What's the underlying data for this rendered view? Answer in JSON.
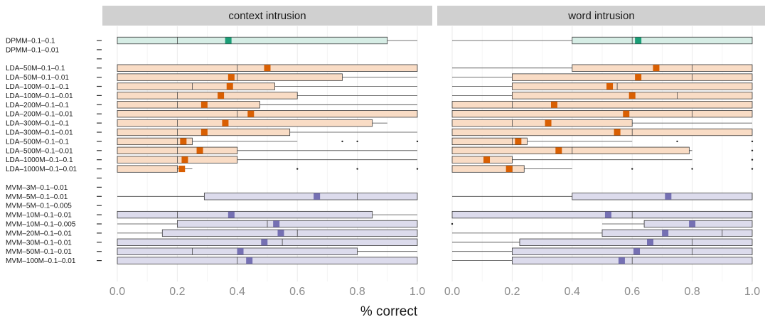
{
  "chart_data": {
    "type": "boxplot",
    "xlabel": "% correct",
    "xlim": [
      0,
      1
    ],
    "xticks": [
      "0.0",
      "0.2",
      "0.4",
      "0.6",
      "0.8",
      "1.0"
    ],
    "panels": [
      "context intrusion",
      "word intrusion"
    ],
    "group_colors": {
      "DPMM": {
        "fill": "#d6ede5",
        "stroke": "#3a3a3a",
        "mean": "#1b9e77"
      },
      "LDA": {
        "fill": "#f9dcc5",
        "stroke": "#3a3a3a",
        "mean": "#d95f02"
      },
      "MVM": {
        "fill": "#dcdbec",
        "stroke": "#3a3a3a",
        "mean": "#7570b3"
      }
    },
    "rows": [
      {
        "label": "DPMM–0.1–0.1",
        "group": "DPMM",
        "context": {
          "lw": 0,
          "q1": 0,
          "med": 0.2,
          "q3": 0.9,
          "uw": 1.0,
          "mean": 0.37,
          "outliers": []
        },
        "word": {
          "lw": 0,
          "q1": 0.4,
          "med": 0.6,
          "q3": 1.0,
          "uw": 1.0,
          "mean": 0.62,
          "outliers": []
        }
      },
      {
        "label": "DPMM–0.1–0.01",
        "group": "DPMM",
        "context": null,
        "word": null
      },
      {
        "label": "",
        "group": "blank",
        "context": null,
        "word": null
      },
      {
        "label": "LDA–50M–0.1–0.1",
        "group": "LDA",
        "context": {
          "lw": 0,
          "q1": 0,
          "med": 0.4,
          "q3": 1.0,
          "uw": 1.0,
          "mean": 0.5,
          "outliers": []
        },
        "word": {
          "lw": 0,
          "q1": 0.4,
          "med": 0.8,
          "q3": 1.0,
          "uw": 1.0,
          "mean": 0.68,
          "outliers": []
        }
      },
      {
        "label": "LDA–50M–0.1–0.01",
        "group": "LDA",
        "context": {
          "lw": 0,
          "q1": 0,
          "med": 0.4,
          "q3": 0.75,
          "uw": 1.0,
          "mean": 0.38,
          "outliers": []
        },
        "word": {
          "lw": 0,
          "q1": 0.2,
          "med": 0.8,
          "q3": 1.0,
          "uw": 1.0,
          "mean": 0.62,
          "outliers": []
        }
      },
      {
        "label": "LDA–100M–0.1–0.1",
        "group": "LDA",
        "context": {
          "lw": 0,
          "q1": 0,
          "med": 0.25,
          "q3": 0.525,
          "uw": 1.0,
          "mean": 0.375,
          "outliers": []
        },
        "word": {
          "lw": 0,
          "q1": 0.2,
          "med": 0.55,
          "q3": 1.0,
          "uw": 1.0,
          "mean": 0.525,
          "outliers": []
        }
      },
      {
        "label": "LDA–100M–0.1–0.01",
        "group": "LDA",
        "context": {
          "lw": 0,
          "q1": 0,
          "med": 0.2,
          "q3": 0.6,
          "uw": 1.0,
          "mean": 0.345,
          "outliers": []
        },
        "word": {
          "lw": 0,
          "q1": 0.2,
          "med": 0.75,
          "q3": 1.0,
          "uw": 1.0,
          "mean": 0.6,
          "outliers": []
        }
      },
      {
        "label": "LDA–200M–0.1–0.1",
        "group": "LDA",
        "context": {
          "lw": 0,
          "q1": 0,
          "med": 0.2,
          "q3": 0.475,
          "uw": 1.0,
          "mean": 0.29,
          "outliers": []
        },
        "word": {
          "lw": 0,
          "q1": 0,
          "med": 0.2,
          "q3": 1.0,
          "uw": 1.0,
          "mean": 0.34,
          "outliers": []
        }
      },
      {
        "label": "LDA–200M–0.1–0.01",
        "group": "LDA",
        "context": {
          "lw": 0,
          "q1": 0,
          "med": 0.4,
          "q3": 1.0,
          "uw": 1.0,
          "mean": 0.445,
          "outliers": []
        },
        "word": {
          "lw": 0,
          "q1": 0,
          "med": 0.8,
          "q3": 1.0,
          "uw": 1.0,
          "mean": 0.58,
          "outliers": []
        }
      },
      {
        "label": "LDA–300M–0.1–0.1",
        "group": "LDA",
        "context": {
          "lw": 0,
          "q1": 0,
          "med": 0.2,
          "q3": 0.85,
          "uw": 0.9,
          "mean": 0.36,
          "outliers": []
        },
        "word": {
          "lw": 0,
          "q1": 0,
          "med": 0.2,
          "q3": 0.6,
          "uw": 1.0,
          "mean": 0.32,
          "outliers": []
        }
      },
      {
        "label": "LDA–300M–0.1–0.01",
        "group": "LDA",
        "context": {
          "lw": 0,
          "q1": 0,
          "med": 0.2,
          "q3": 0.575,
          "uw": 1.0,
          "mean": 0.29,
          "outliers": []
        },
        "word": {
          "lw": 0,
          "q1": 0,
          "med": 0.6,
          "q3": 1.0,
          "uw": 1.0,
          "mean": 0.55,
          "outliers": []
        }
      },
      {
        "label": "LDA–500M–0.1–0.1",
        "group": "LDA",
        "context": {
          "lw": 0,
          "q1": 0,
          "med": 0.2,
          "q3": 0.25,
          "uw": 0.6,
          "mean": 0.22,
          "outliers": [
            0.75,
            0.8,
            1.0
          ]
        },
        "word": {
          "lw": 0,
          "q1": 0,
          "med": 0.2,
          "q3": 0.25,
          "uw": 0.6,
          "mean": 0.22,
          "outliers": [
            0.75,
            1.0
          ]
        }
      },
      {
        "label": "LDA–500M–0.1–0.01",
        "group": "LDA",
        "context": {
          "lw": 0,
          "q1": 0,
          "med": 0.2,
          "q3": 0.4,
          "uw": 1.0,
          "mean": 0.275,
          "outliers": []
        },
        "word": {
          "lw": 0,
          "q1": 0,
          "med": 0.4,
          "q3": 0.79,
          "uw": 0.8,
          "mean": 0.355,
          "outliers": [
            1.0
          ]
        }
      },
      {
        "label": "LDA–1000M–0.1–0.1",
        "group": "LDA",
        "context": {
          "lw": 0,
          "q1": 0,
          "med": 0.2,
          "q3": 0.4,
          "uw": 1.0,
          "mean": 0.225,
          "outliers": []
        },
        "word": {
          "lw": 0,
          "q1": 0,
          "med": 0.2,
          "q3": 0.2,
          "uw": 0.8,
          "mean": 0.115,
          "outliers": [
            1.0
          ]
        }
      },
      {
        "label": "LDA–1000M–0.1–0.01",
        "group": "LDA",
        "context": {
          "lw": 0,
          "q1": 0,
          "med": 0.2,
          "q3": 0.2,
          "uw": 0.25,
          "mean": 0.215,
          "outliers": [
            0.6,
            0.8,
            1.0
          ]
        },
        "word": {
          "lw": 0,
          "q1": 0,
          "med": 0.2,
          "q3": 0.24,
          "uw": 0.4,
          "mean": 0.19,
          "outliers": [
            0.6,
            0.8,
            1.0
          ]
        }
      },
      {
        "label": "",
        "group": "blank",
        "context": null,
        "word": null
      },
      {
        "label": "MVM–3M–0.1–0.01",
        "group": "MVM",
        "context": null,
        "word": null
      },
      {
        "label": "MVM–5M–0.1–0.01",
        "group": "MVM",
        "context": {
          "lw": 0,
          "q1": 0.29,
          "med": 0.8,
          "q3": 1.0,
          "uw": 1.0,
          "mean": 0.665,
          "outliers": []
        },
        "word": {
          "lw": 0,
          "q1": 0.4,
          "med": 1.0,
          "q3": 1.0,
          "uw": 1.0,
          "mean": 0.72,
          "outliers": []
        }
      },
      {
        "label": "MVM–5M–0.1–0.005",
        "group": "MVM",
        "context": null,
        "word": null
      },
      {
        "label": "MVM–10M–0.1–0.01",
        "group": "MVM",
        "context": {
          "lw": 0,
          "q1": 0,
          "med": 0.2,
          "q3": 0.85,
          "uw": 1.0,
          "mean": 0.38,
          "outliers": []
        },
        "word": {
          "lw": 0,
          "q1": 0,
          "med": 0.6,
          "q3": 1.0,
          "uw": 1.0,
          "mean": 0.52,
          "outliers": []
        }
      },
      {
        "label": "MVM–10M–0.1–0.005",
        "group": "MVM",
        "context": {
          "lw": 0,
          "q1": 0.2,
          "med": 0.5,
          "q3": 1.0,
          "uw": 1.0,
          "mean": 0.53,
          "outliers": []
        },
        "word": {
          "lw": 0.5,
          "q1": 0.64,
          "med": 0.8,
          "q3": 1.0,
          "uw": 1.0,
          "mean": 0.8,
          "outliers": [
            0
          ]
        }
      },
      {
        "label": "MVM–20M–0.1–0.01",
        "group": "MVM",
        "context": {
          "lw": 0,
          "q1": 0.15,
          "med": 0.6,
          "q3": 1.0,
          "uw": 1.0,
          "mean": 0.545,
          "outliers": []
        },
        "word": {
          "lw": 0,
          "q1": 0.5,
          "med": 0.9,
          "q3": 1.0,
          "uw": 1.0,
          "mean": 0.71,
          "outliers": []
        }
      },
      {
        "label": "MVM–30M–0.1–0.01",
        "group": "MVM",
        "context": {
          "lw": 0,
          "q1": 0,
          "med": 0.55,
          "q3": 1.0,
          "uw": 1.0,
          "mean": 0.49,
          "outliers": []
        },
        "word": {
          "lw": 0,
          "q1": 0.225,
          "med": 0.8,
          "q3": 1.0,
          "uw": 1.0,
          "mean": 0.66,
          "outliers": []
        }
      },
      {
        "label": "MVM–50M–0.1–0.01",
        "group": "MVM",
        "context": {
          "lw": 0,
          "q1": 0,
          "med": 0.25,
          "q3": 0.8,
          "uw": 1.0,
          "mean": 0.41,
          "outliers": []
        },
        "word": {
          "lw": 0,
          "q1": 0.2,
          "med": 0.8,
          "q3": 1.0,
          "uw": 1.0,
          "mean": 0.615,
          "outliers": []
        }
      },
      {
        "label": "MVM–100M–0.1–0.01",
        "group": "MVM",
        "context": {
          "lw": 0,
          "q1": 0,
          "med": 0.4,
          "q3": 1.0,
          "uw": 1.0,
          "mean": 0.44,
          "outliers": []
        },
        "word": {
          "lw": 0,
          "q1": 0.2,
          "med": 0.6,
          "q3": 1.0,
          "uw": 1.0,
          "mean": 0.565,
          "outliers": []
        }
      }
    ]
  }
}
